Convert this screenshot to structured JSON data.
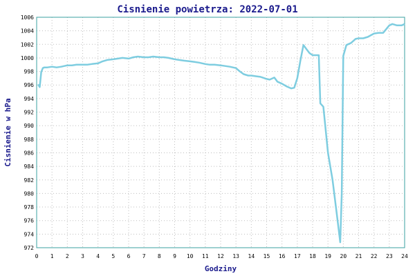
{
  "chart_data": {
    "type": "line",
    "title": "Cisnienie powietrza: 2022-07-01",
    "xlabel": "Godziny",
    "ylabel": "Cisnienie w hPa",
    "xlim": [
      0,
      24
    ],
    "ylim": [
      972,
      1006
    ],
    "x_ticks": [
      "0",
      "1",
      "2",
      "3",
      "4",
      "5",
      "6",
      "7",
      "8",
      "9",
      "10",
      "11",
      "12",
      "13",
      "14",
      "15",
      "16",
      "17",
      "18",
      "19",
      "20",
      "21",
      "22",
      "23",
      "24"
    ],
    "y_ticks": [
      "972",
      "974",
      "976",
      "978",
      "980",
      "982",
      "984",
      "986",
      "988",
      "990",
      "992",
      "994",
      "996",
      "998",
      "1000",
      "1002",
      "1004",
      "1006"
    ],
    "grid": true,
    "series": [
      {
        "color": "#7ecde0",
        "x": [
          0.1,
          0.2,
          0.3,
          0.4,
          0.5,
          0.7,
          1.0,
          1.3,
          1.6,
          2.0,
          2.3,
          2.6,
          3.0,
          3.3,
          3.6,
          4.0,
          4.3,
          4.6,
          5.0,
          5.3,
          5.6,
          6.0,
          6.3,
          6.6,
          7.0,
          7.3,
          7.6,
          8.0,
          8.3,
          8.6,
          9.0,
          9.3,
          9.6,
          10.0,
          10.3,
          10.6,
          11.0,
          11.3,
          11.6,
          12.0,
          12.3,
          12.6,
          13.0,
          13.2,
          13.5,
          13.8,
          14.0,
          14.3,
          14.6,
          15.0,
          15.2,
          15.5,
          15.7,
          16.0,
          16.3,
          16.6,
          16.8,
          17.0,
          17.2,
          17.4,
          17.6,
          17.8,
          18.0,
          18.2,
          18.4,
          18.5,
          18.7,
          19.0,
          19.3,
          19.6,
          19.8,
          19.9,
          20.0,
          20.2,
          20.5,
          20.8,
          21.0,
          21.3,
          21.6,
          22.0,
          22.3,
          22.6,
          23.0,
          23.2,
          23.5,
          23.8,
          24.0
        ],
        "y": [
          996.1,
          995.7,
          997.9,
          998.5,
          998.6,
          998.6,
          998.7,
          998.6,
          998.7,
          998.9,
          998.9,
          999.0,
          999.0,
          999.0,
          999.1,
          999.2,
          999.5,
          999.7,
          999.8,
          999.9,
          1000.0,
          999.9,
          1000.1,
          1000.2,
          1000.1,
          1000.1,
          1000.2,
          1000.1,
          1000.1,
          1000.0,
          999.8,
          999.7,
          999.6,
          999.5,
          999.4,
          999.3,
          999.1,
          999.0,
          999.0,
          998.9,
          998.8,
          998.7,
          998.5,
          998.1,
          997.6,
          997.4,
          997.4,
          997.3,
          997.2,
          996.9,
          996.8,
          997.1,
          996.5,
          996.2,
          995.8,
          995.5,
          995.6,
          997.0,
          999.6,
          1001.9,
          1001.3,
          1000.7,
          1000.4,
          1000.4,
          1000.4,
          993.3,
          992.8,
          986.0,
          982.0,
          976.5,
          972.8,
          980.0,
          1000.3,
          1001.9,
          1002.2,
          1002.8,
          1002.9,
          1002.9,
          1003.1,
          1003.6,
          1003.7,
          1003.7,
          1004.8,
          1005.0,
          1004.8,
          1004.8,
          1005.0
        ]
      }
    ]
  }
}
